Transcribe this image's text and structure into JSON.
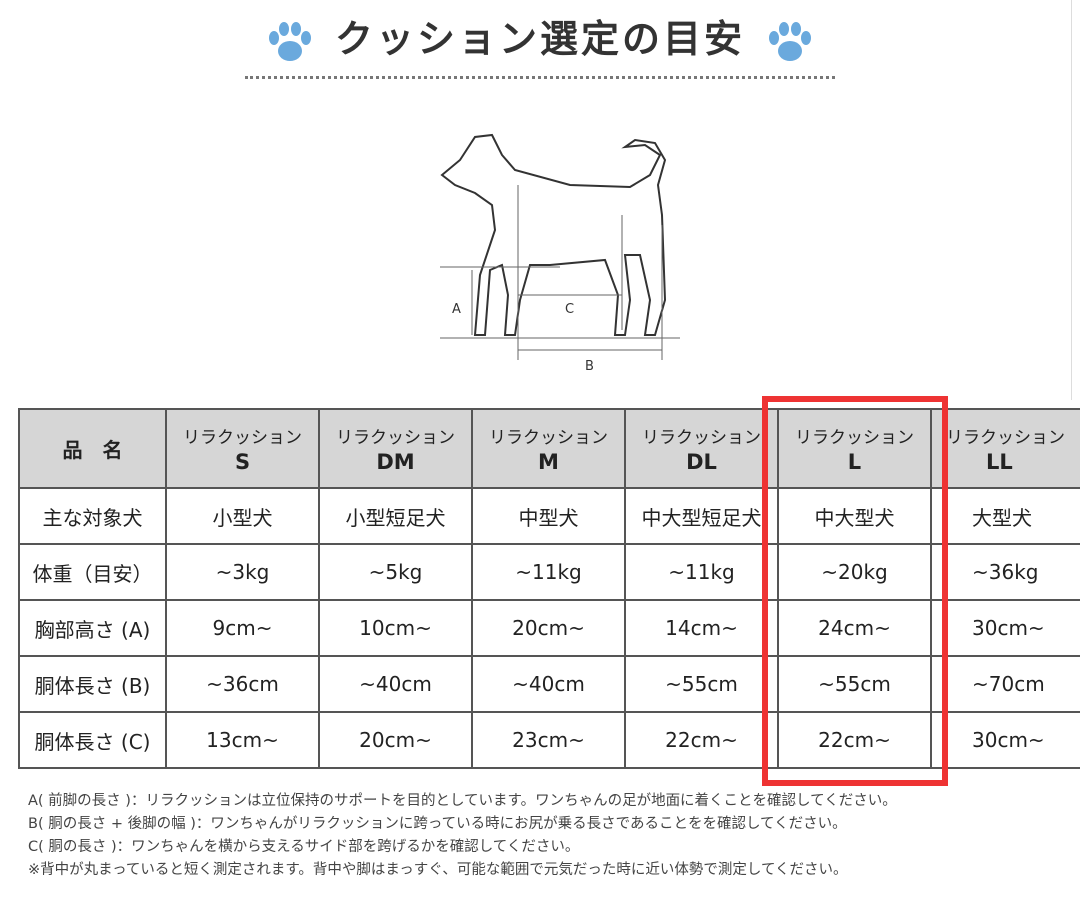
{
  "title": "クッション選定の目安",
  "diagram_labels": {
    "a": "A",
    "b": "B",
    "c": "C"
  },
  "table": {
    "header_label": "品　名",
    "product_prefix": "リラクッション",
    "sizes": [
      "S",
      "DM",
      "M",
      "DL",
      "L",
      "LL"
    ],
    "rows": [
      {
        "label": "主な対象犬",
        "values": [
          "小型犬",
          "小型短足犬",
          "中型犬",
          "中大型短足犬",
          "中大型犬",
          "大型犬"
        ]
      },
      {
        "label": "体重（目安）",
        "values": [
          "~3kg",
          "~5kg",
          "~11kg",
          "~11kg",
          "~20kg",
          "~36kg"
        ]
      },
      {
        "label": "胸部高さ (A)",
        "values": [
          "9cm~",
          "10cm~",
          "20cm~",
          "14cm~",
          "24cm~",
          "30cm~"
        ]
      },
      {
        "label": "胴体長さ (B)",
        "values": [
          "~36cm",
          "~40cm",
          "~40cm",
          "~55cm",
          "~55cm",
          "~70cm"
        ]
      },
      {
        "label": "胴体長さ (C)",
        "values": [
          "13cm~",
          "20cm~",
          "23cm~",
          "22cm~",
          "22cm~",
          "30cm~"
        ]
      }
    ],
    "highlight_color": "#e33333"
  },
  "notes": [
    "A( 前脚の長さ )：リラクッションは立位保持のサポートを目的としています。ワンちゃんの足が地面に着くことを確認してください。",
    "B( 胴の長さ + 後脚の幅 )：ワンちゃんがリラクッションに跨っている時にお尻が乗る長さであることをを確認してください。",
    "C( 胴の長さ )：ワンちゃんを横から支えるサイド部を跨げるかを確認してください。",
    "※背中が丸まっていると短く測定されます。背中や脚はまっすぐ、可能な範囲で元気だった時に近い体勢で測定してください。"
  ],
  "paw_color": "#6aa9dd"
}
